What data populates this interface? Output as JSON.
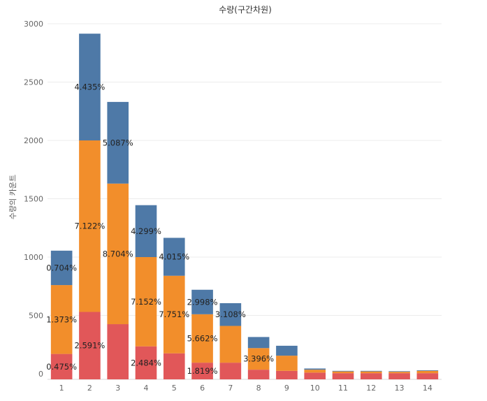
{
  "chart_data": {
    "type": "bar",
    "stacked": true,
    "title": "수량(구간차원)",
    "ylabel": "수량의 카운트",
    "xlabel": "",
    "categories": [
      "1",
      "2",
      "3",
      "4",
      "5",
      "6",
      "7",
      "8",
      "9",
      "10",
      "11",
      "12",
      "13",
      "14"
    ],
    "ylim": [
      0,
      3000
    ],
    "yticks": [
      0,
      500,
      1000,
      1500,
      2000,
      2500,
      3000
    ],
    "grid": true,
    "series": [
      {
        "color": "#e15759",
        "values": [
          170,
          530,
          425,
          235,
          175,
          95,
          95,
          35,
          25,
          10,
          5,
          5,
          5,
          5
        ],
        "labels": [
          "0.475%",
          "2.591%",
          "",
          "2.484%",
          "",
          "1.819%",
          "",
          "",
          "",
          "",
          "",
          "",
          "",
          ""
        ]
      },
      {
        "color": "#f28e2b",
        "values": [
          590,
          1470,
          1205,
          765,
          665,
          415,
          315,
          185,
          130,
          25,
          15,
          15,
          12,
          20
        ],
        "labels": [
          "1.373%",
          "7.122%",
          "8.704%",
          "7.152%",
          "7.751%",
          "5.662%",
          "",
          "3.396%",
          "",
          "",
          "",
          "",
          "",
          ""
        ]
      },
      {
        "color": "#4e79a7",
        "values": [
          295,
          915,
          700,
          445,
          325,
          210,
          195,
          95,
          85,
          10,
          5,
          5,
          5,
          5
        ],
        "labels": [
          "0.704%",
          "4.435%",
          "5.087%",
          "4.299%",
          "4.015%",
          "2.998%",
          "3.108%",
          "",
          "",
          "",
          "",
          "",
          "",
          ""
        ]
      }
    ]
  }
}
